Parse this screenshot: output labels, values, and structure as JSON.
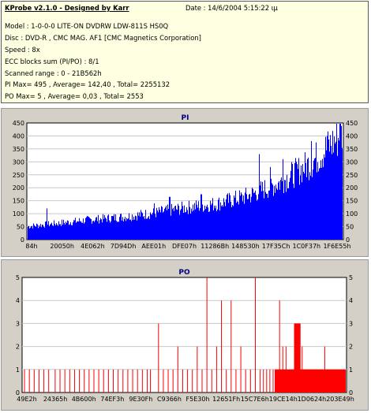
{
  "info": {
    "title": "KProbe v2.1.0 - Designed by Karr",
    "date": "Date : 14/6/2004 5:15:22 ιμ",
    "lines": [
      "Model : 1-0-0-0 LITE-ON DVDRW LDW-811S   HS0Q",
      "Disc : DVD-R , CMC MAG. AF1 [CMC Magnetics Corporation]",
      "Speed : 8x",
      "ECC blocks sum (PI/PO) : 8/1",
      "Scanned range : 0 - 21B562h",
      "PI Max= 495 , Average= 142,40 , Total= 2255132",
      "PO Max= 5 , Average= 0,03 , Total= 2553"
    ]
  },
  "chart_data": [
    {
      "type": "bar",
      "title": "PI",
      "ylim": [
        0,
        450
      ],
      "yticks": [
        0,
        50,
        100,
        150,
        200,
        250,
        300,
        350,
        400,
        450
      ],
      "xtick_labels": [
        "84h",
        "20050h",
        "4E062h",
        "7D94Dh",
        "AEE01h",
        "DFE07h",
        "11286Bh",
        "148530h",
        "17F35Ch",
        "1C0F37h",
        "1F6E55h"
      ],
      "color": "#0000ff",
      "trend": {
        "x": [
          0.0,
          0.1,
          0.2,
          0.3,
          0.4,
          0.5,
          0.6,
          0.7,
          0.8,
          0.9,
          1.0
        ],
        "y": [
          50,
          62,
          75,
          85,
          100,
          120,
          135,
          165,
          215,
          290,
          400
        ]
      },
      "spikes": [
        {
          "x": 0.06,
          "y": 120
        },
        {
          "x": 0.4,
          "y": 140
        },
        {
          "x": 0.45,
          "y": 165
        },
        {
          "x": 0.55,
          "y": 175
        },
        {
          "x": 0.68,
          "y": 175
        },
        {
          "x": 0.735,
          "y": 330
        },
        {
          "x": 0.77,
          "y": 280
        },
        {
          "x": 0.81,
          "y": 310
        },
        {
          "x": 0.9,
          "y": 380
        },
        {
          "x": 0.95,
          "y": 400
        },
        {
          "x": 0.99,
          "y": 460
        }
      ]
    },
    {
      "type": "bar",
      "title": "PO",
      "ylim": [
        0,
        5
      ],
      "yticks": [
        0,
        1,
        2,
        3,
        4,
        5
      ],
      "xtick_labels": [
        "49E2h",
        "24365h",
        "4B600h",
        "74EF3h",
        "9E30Fh",
        "C9366h",
        "F5E30h",
        "12651Fh",
        "15C7E6h",
        "19CE14h",
        "1D0624h",
        "203E49h"
      ],
      "color": "#ff0000",
      "bars": [
        {
          "x": 0.005,
          "y": 1
        },
        {
          "x": 0.02,
          "y": 1
        },
        {
          "x": 0.035,
          "y": 1
        },
        {
          "x": 0.05,
          "y": 1
        },
        {
          "x": 0.065,
          "y": 1
        },
        {
          "x": 0.08,
          "y": 1
        },
        {
          "x": 0.1,
          "y": 1
        },
        {
          "x": 0.115,
          "y": 1
        },
        {
          "x": 0.13,
          "y": 1
        },
        {
          "x": 0.145,
          "y": 1
        },
        {
          "x": 0.16,
          "y": 1
        },
        {
          "x": 0.175,
          "y": 1
        },
        {
          "x": 0.19,
          "y": 1
        },
        {
          "x": 0.205,
          "y": 1
        },
        {
          "x": 0.22,
          "y": 1
        },
        {
          "x": 0.235,
          "y": 1
        },
        {
          "x": 0.25,
          "y": 1
        },
        {
          "x": 0.265,
          "y": 1
        },
        {
          "x": 0.28,
          "y": 1
        },
        {
          "x": 0.295,
          "y": 1
        },
        {
          "x": 0.31,
          "y": 1
        },
        {
          "x": 0.325,
          "y": 1
        },
        {
          "x": 0.34,
          "y": 1
        },
        {
          "x": 0.355,
          "y": 1
        },
        {
          "x": 0.37,
          "y": 1
        },
        {
          "x": 0.385,
          "y": 1
        },
        {
          "x": 0.395,
          "y": 1
        },
        {
          "x": 0.42,
          "y": 3
        },
        {
          "x": 0.435,
          "y": 1
        },
        {
          "x": 0.45,
          "y": 1
        },
        {
          "x": 0.465,
          "y": 1
        },
        {
          "x": 0.48,
          "y": 2
        },
        {
          "x": 0.495,
          "y": 1
        },
        {
          "x": 0.51,
          "y": 1
        },
        {
          "x": 0.525,
          "y": 1
        },
        {
          "x": 0.54,
          "y": 2
        },
        {
          "x": 0.555,
          "y": 1
        },
        {
          "x": 0.57,
          "y": 5
        },
        {
          "x": 0.585,
          "y": 1
        },
        {
          "x": 0.6,
          "y": 2
        },
        {
          "x": 0.615,
          "y": 4
        },
        {
          "x": 0.63,
          "y": 1
        },
        {
          "x": 0.645,
          "y": 4
        },
        {
          "x": 0.66,
          "y": 1
        },
        {
          "x": 0.675,
          "y": 2
        },
        {
          "x": 0.69,
          "y": 1
        },
        {
          "x": 0.705,
          "y": 1
        },
        {
          "x": 0.72,
          "y": 5
        },
        {
          "x": 0.735,
          "y": 1
        },
        {
          "x": 0.745,
          "y": 1
        },
        {
          "x": 0.755,
          "y": 1
        },
        {
          "x": 0.765,
          "y": 1
        },
        {
          "x": 0.775,
          "y": 1
        },
        {
          "x": 0.785,
          "y": 1
        },
        {
          "x": 0.795,
          "y": 4
        },
        {
          "x": 0.805,
          "y": 2
        },
        {
          "x": 0.815,
          "y": 2
        },
        {
          "x": 0.825,
          "y": 1
        },
        {
          "x": 0.835,
          "y": 1
        },
        {
          "x": 0.845,
          "y": 3
        },
        {
          "x": 0.855,
          "y": 3
        },
        {
          "x": 0.865,
          "y": 2
        },
        {
          "x": 0.875,
          "y": 1
        },
        {
          "x": 0.885,
          "y": 1
        },
        {
          "x": 0.895,
          "y": 1
        },
        {
          "x": 0.905,
          "y": 1
        },
        {
          "x": 0.915,
          "y": 1
        },
        {
          "x": 0.925,
          "y": 1
        },
        {
          "x": 0.935,
          "y": 2
        },
        {
          "x": 0.945,
          "y": 1
        },
        {
          "x": 0.955,
          "y": 1
        },
        {
          "x": 0.965,
          "y": 1
        },
        {
          "x": 0.975,
          "y": 1
        },
        {
          "x": 0.985,
          "y": 1
        },
        {
          "x": 0.995,
          "y": 1
        }
      ],
      "dense_ranges": [
        {
          "x": [
            0.78,
            1.0
          ],
          "y": 1
        },
        {
          "x": [
            0.84,
            0.86
          ],
          "y": 3
        }
      ]
    }
  ]
}
